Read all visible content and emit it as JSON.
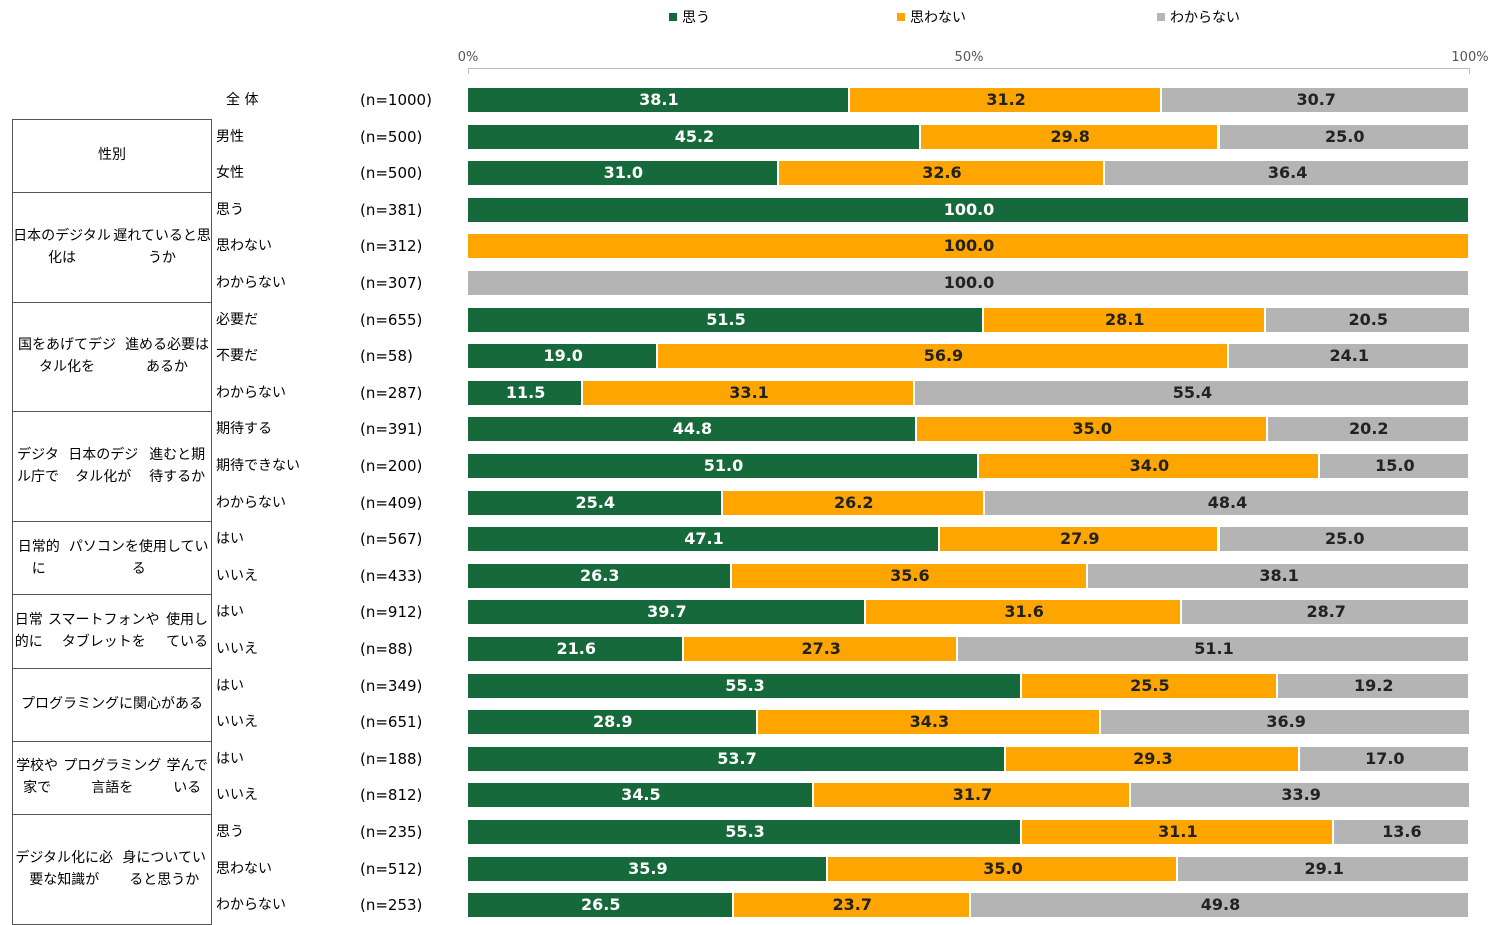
{
  "chart_data": {
    "type": "bar",
    "orientation": "horizontal-stacked-100",
    "legend_position": "top",
    "series": [
      {
        "name": "思う",
        "color": "#16693A"
      },
      {
        "name": "思わない",
        "color": "#FFA500"
      },
      {
        "name": "わからない",
        "color": "#B4B4B4"
      }
    ],
    "x_ticks": [
      "0%",
      "50%",
      "100%"
    ],
    "xlim": [
      0,
      100
    ],
    "rows": [
      {
        "group": "",
        "label": "全 体",
        "n": "(n=1000)",
        "values": [
          38.1,
          31.2,
          30.7
        ]
      },
      {
        "group": "性別",
        "label": "男性",
        "n": "(n=500)",
        "values": [
          45.2,
          29.8,
          25.0
        ]
      },
      {
        "group": "性別",
        "label": "女性",
        "n": "(n=500)",
        "values": [
          31.0,
          32.6,
          36.4
        ]
      },
      {
        "group": "日本のデジタル化は\n遅れていると思うか",
        "label": "思う",
        "n": "(n=381)",
        "values": [
          100.0,
          0,
          0
        ]
      },
      {
        "group": "日本のデジタル化は\n遅れていると思うか",
        "label": "思わない",
        "n": "(n=312)",
        "values": [
          0,
          100.0,
          0
        ]
      },
      {
        "group": "日本のデジタル化は\n遅れていると思うか",
        "label": "わからない",
        "n": "(n=307)",
        "values": [
          0,
          0,
          100.0
        ]
      },
      {
        "group": "国をあげてデジタル化を\n進める必要はあるか",
        "label": "必要だ",
        "n": "(n=655)",
        "values": [
          51.5,
          28.1,
          20.5
        ]
      },
      {
        "group": "国をあげてデジタル化を\n進める必要はあるか",
        "label": "不要だ",
        "n": "(n=58)",
        "values": [
          19.0,
          56.9,
          24.1
        ]
      },
      {
        "group": "国をあげてデジタル化を\n進める必要はあるか",
        "label": "わからない",
        "n": "(n=287)",
        "values": [
          11.5,
          33.1,
          55.4
        ]
      },
      {
        "group": "デジタル庁で\n日本のデジタル化が\n進むと期待するか",
        "label": "期待する",
        "n": "(n=391)",
        "values": [
          44.8,
          35.0,
          20.2
        ]
      },
      {
        "group": "デジタル庁で\n日本のデジタル化が\n進むと期待するか",
        "label": "期待できない",
        "n": "(n=200)",
        "values": [
          51.0,
          34.0,
          15.0
        ]
      },
      {
        "group": "デジタル庁で\n日本のデジタル化が\n進むと期待するか",
        "label": "わからない",
        "n": "(n=409)",
        "values": [
          25.4,
          26.2,
          48.4
        ]
      },
      {
        "group": "日常的に\nパソコンを使用している",
        "label": "はい",
        "n": "(n=567)",
        "values": [
          47.1,
          27.9,
          25.0
        ]
      },
      {
        "group": "日常的に\nパソコンを使用している",
        "label": "いいえ",
        "n": "(n=433)",
        "values": [
          26.3,
          35.6,
          38.1
        ]
      },
      {
        "group": "日常的に\nスマートフォンやタブレットを\n使用している",
        "label": "はい",
        "n": "(n=912)",
        "values": [
          39.7,
          31.6,
          28.7
        ]
      },
      {
        "group": "日常的に\nスマートフォンやタブレットを\n使用している",
        "label": "いいえ",
        "n": "(n=88)",
        "values": [
          21.6,
          27.3,
          51.1
        ]
      },
      {
        "group": "プログラミングに関心がある",
        "label": "はい",
        "n": "(n=349)",
        "values": [
          55.3,
          25.5,
          19.2
        ]
      },
      {
        "group": "プログラミングに関心がある",
        "label": "いいえ",
        "n": "(n=651)",
        "values": [
          28.9,
          34.3,
          36.9
        ]
      },
      {
        "group": "学校や家で\nプログラミング言語を\n学んでいる",
        "label": "はい",
        "n": "(n=188)",
        "values": [
          53.7,
          29.3,
          17.0
        ]
      },
      {
        "group": "学校や家で\nプログラミング言語を\n学んでいる",
        "label": "いいえ",
        "n": "(n=812)",
        "values": [
          34.5,
          31.7,
          33.9
        ]
      },
      {
        "group": "デジタル化に必要な知識が\n身についていると思うか",
        "label": "思う",
        "n": "(n=235)",
        "values": [
          55.3,
          31.1,
          13.6
        ]
      },
      {
        "group": "デジタル化に必要な知識が\n身についていると思うか",
        "label": "思わない",
        "n": "(n=512)",
        "values": [
          35.9,
          35.0,
          29.1
        ]
      },
      {
        "group": "デジタル化に必要な知識が\n身についていると思うか",
        "label": "わからない",
        "n": "(n=253)",
        "values": [
          26.5,
          23.7,
          49.8
        ]
      }
    ]
  }
}
